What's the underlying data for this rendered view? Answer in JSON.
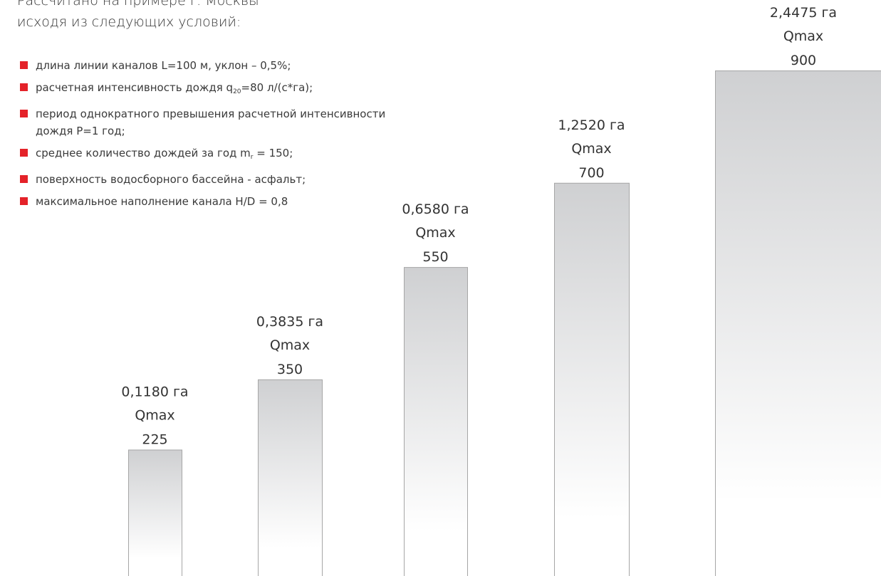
{
  "intro": {
    "line1": "Рассчитано на примере г. Москвы",
    "line2": "исходя из следующих условий:"
  },
  "conditions": [
    {
      "marker_color": "#e42229",
      "pre": "длина линии каналов L=100 м, уклон – 0,5%;",
      "sub": "",
      "post": ""
    },
    {
      "marker_color": "#e42229",
      "pre": "расчетная интенсивность дождя q",
      "sub": "20",
      "post": "=80 л/(с*га);"
    },
    {
      "marker_color": "#e42229",
      "pre": "период однократного превышения расчетной интенсивности",
      "sub": "",
      "post": "",
      "line2": "дождя P=1 год;"
    },
    {
      "marker_color": "#e42229",
      "pre": "среднее количество дождей за год m",
      "sub": "r",
      "post": " = 150;"
    },
    {
      "marker_color": "#e42229",
      "pre": "поверхность водосборного бассейна - асфальт;",
      "sub": "",
      "post": ""
    },
    {
      "marker_color": "#e42229",
      "pre": "максимальное наполнение канала H/D = 0,8",
      "sub": "",
      "post": ""
    }
  ],
  "chart_data": {
    "type": "bar",
    "categories": [
      "0,1180 га",
      "0,3835 га",
      "0,6580 га",
      "1,2520 га",
      "2,4475 га"
    ],
    "series": [
      {
        "values": [
          225,
          350,
          550,
          700,
          900
        ]
      }
    ],
    "value_prefix": "Qmax",
    "bar_gradient": [
      "#cfd0d2",
      "#ffffff"
    ],
    "bar_border": "#a6a6a6",
    "grid": false
  }
}
